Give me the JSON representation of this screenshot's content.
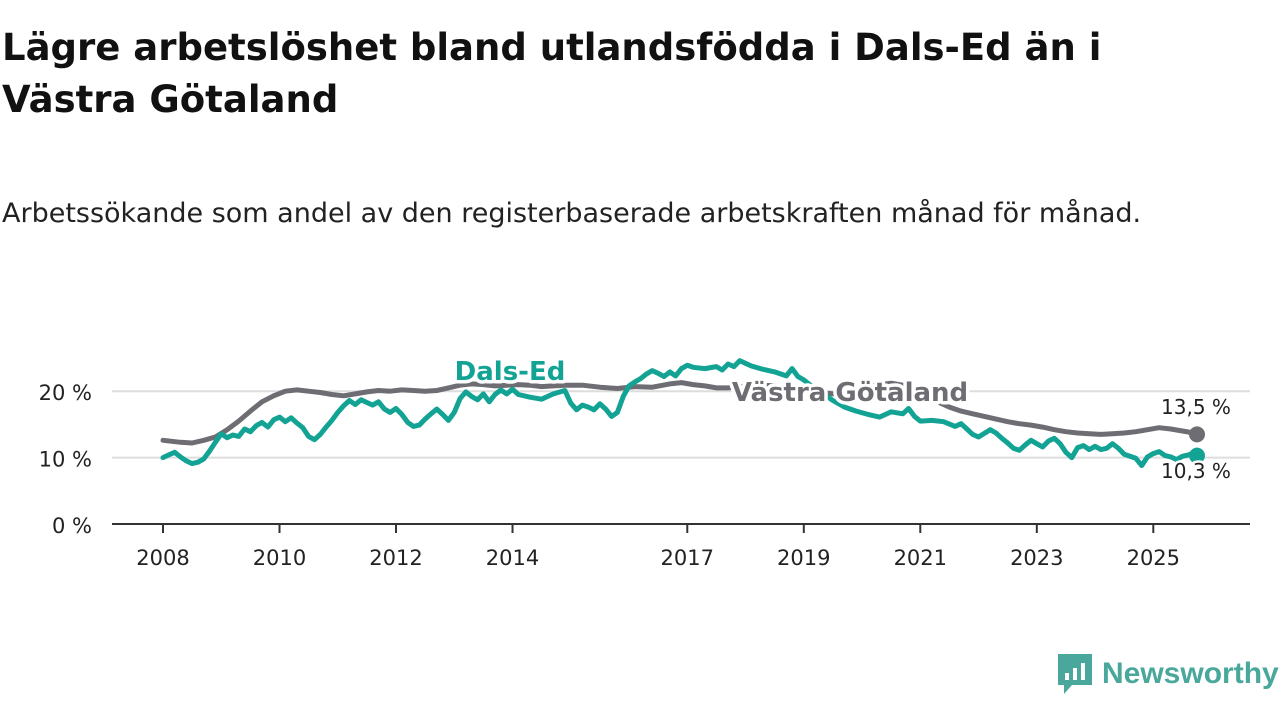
{
  "title": "Lägre arbetslöshet bland utlandsfödda i Dals-Ed än i Västra Götaland",
  "subtitle": "Arbetssökande som andel av den registerbaserade arbetskraften månad för månad.",
  "brand": {
    "name": "Newsworthy",
    "icon": "newsworthy-logo-icon"
  },
  "colors": {
    "dals_ed": "#12a394",
    "vastra_gotaland": "#6e6d73",
    "grid": "#dddddd",
    "axis": "#333333"
  },
  "chart_data": {
    "type": "line",
    "ylim": [
      0,
      25
    ],
    "xlim": [
      2007.9,
      2026.0
    ],
    "y_ticks": [
      {
        "value": 0,
        "label": "0 %"
      },
      {
        "value": 10,
        "label": "10 %"
      },
      {
        "value": 20,
        "label": "20 %"
      }
    ],
    "x_ticks": [
      {
        "value": 2008,
        "label": "2008"
      },
      {
        "value": 2010,
        "label": "2010"
      },
      {
        "value": 2012,
        "label": "2012"
      },
      {
        "value": 2014,
        "label": "2014"
      },
      {
        "value": 2017,
        "label": "2017"
      },
      {
        "value": 2019,
        "label": "2019"
      },
      {
        "value": 2021,
        "label": "2021"
      },
      {
        "value": 2023,
        "label": "2023"
      },
      {
        "value": 2025,
        "label": "2025"
      }
    ],
    "series": [
      {
        "name": "Västra Götaland",
        "label": "Västra Götaland",
        "color": "#6e6d73",
        "last_value_label": "13,5 %",
        "points": [
          [
            2008.0,
            12.6
          ],
          [
            2008.3,
            12.3
          ],
          [
            2008.5,
            12.2
          ],
          [
            2008.7,
            12.6
          ],
          [
            2008.9,
            13.1
          ],
          [
            2009.1,
            14.2
          ],
          [
            2009.3,
            15.5
          ],
          [
            2009.5,
            17.0
          ],
          [
            2009.7,
            18.4
          ],
          [
            2009.9,
            19.3
          ],
          [
            2010.1,
            20.0
          ],
          [
            2010.3,
            20.2
          ],
          [
            2010.5,
            20.0
          ],
          [
            2010.7,
            19.8
          ],
          [
            2010.9,
            19.5
          ],
          [
            2011.1,
            19.3
          ],
          [
            2011.3,
            19.6
          ],
          [
            2011.5,
            19.9
          ],
          [
            2011.7,
            20.1
          ],
          [
            2011.9,
            20.0
          ],
          [
            2012.1,
            20.2
          ],
          [
            2012.3,
            20.1
          ],
          [
            2012.5,
            20.0
          ],
          [
            2012.7,
            20.1
          ],
          [
            2012.9,
            20.5
          ],
          [
            2013.1,
            20.9
          ],
          [
            2013.3,
            21.1
          ],
          [
            2013.5,
            21.0
          ],
          [
            2013.7,
            20.8
          ],
          [
            2013.9,
            20.9
          ],
          [
            2014.1,
            21.0
          ],
          [
            2014.3,
            20.9
          ],
          [
            2014.5,
            20.7
          ],
          [
            2014.7,
            20.8
          ],
          [
            2014.9,
            20.9
          ],
          [
            2015.2,
            20.9
          ],
          [
            2015.5,
            20.6
          ],
          [
            2015.8,
            20.4
          ],
          [
            2016.1,
            20.7
          ],
          [
            2016.4,
            20.6
          ],
          [
            2016.7,
            21.1
          ],
          [
            2016.9,
            21.3
          ],
          [
            2017.1,
            21.0
          ],
          [
            2017.3,
            20.8
          ],
          [
            2017.5,
            20.5
          ],
          [
            2017.7,
            20.5
          ],
          [
            2017.9,
            20.7
          ],
          [
            2018.1,
            20.8
          ],
          [
            2018.3,
            20.9
          ],
          [
            2018.5,
            20.8
          ],
          [
            2018.7,
            20.6
          ],
          [
            2018.9,
            20.4
          ],
          [
            2019.1,
            20.2
          ],
          [
            2019.3,
            19.8
          ],
          [
            2019.5,
            19.6
          ],
          [
            2019.7,
            19.8
          ],
          [
            2019.9,
            20.3
          ],
          [
            2020.1,
            20.7
          ],
          [
            2020.3,
            21.0
          ],
          [
            2020.5,
            21.2
          ],
          [
            2020.7,
            20.9
          ],
          [
            2020.9,
            20.2
          ],
          [
            2021.1,
            19.3
          ],
          [
            2021.3,
            18.4
          ],
          [
            2021.5,
            17.6
          ],
          [
            2021.7,
            17.0
          ],
          [
            2021.9,
            16.6
          ],
          [
            2022.1,
            16.2
          ],
          [
            2022.3,
            15.8
          ],
          [
            2022.5,
            15.4
          ],
          [
            2022.7,
            15.1
          ],
          [
            2022.9,
            14.9
          ],
          [
            2023.1,
            14.6
          ],
          [
            2023.3,
            14.2
          ],
          [
            2023.5,
            13.9
          ],
          [
            2023.7,
            13.7
          ],
          [
            2023.9,
            13.6
          ],
          [
            2024.1,
            13.5
          ],
          [
            2024.3,
            13.6
          ],
          [
            2024.5,
            13.7
          ],
          [
            2024.7,
            13.9
          ],
          [
            2024.9,
            14.2
          ],
          [
            2025.1,
            14.5
          ],
          [
            2025.3,
            14.3
          ],
          [
            2025.5,
            14.0
          ],
          [
            2025.7,
            13.7
          ],
          [
            2025.75,
            13.5
          ]
        ]
      },
      {
        "name": "Dals-Ed",
        "label": "Dals-Ed",
        "color": "#12a394",
        "last_value_label": "10,3 %",
        "points": [
          [
            2008.0,
            10.0
          ],
          [
            2008.1,
            10.4
          ],
          [
            2008.2,
            10.8
          ],
          [
            2008.3,
            10.1
          ],
          [
            2008.4,
            9.5
          ],
          [
            2008.5,
            9.1
          ],
          [
            2008.6,
            9.3
          ],
          [
            2008.7,
            9.8
          ],
          [
            2008.8,
            11.0
          ],
          [
            2008.9,
            12.3
          ],
          [
            2009.0,
            13.6
          ],
          [
            2009.1,
            13.0
          ],
          [
            2009.2,
            13.4
          ],
          [
            2009.3,
            13.2
          ],
          [
            2009.4,
            14.3
          ],
          [
            2009.5,
            13.9
          ],
          [
            2009.6,
            14.8
          ],
          [
            2009.7,
            15.3
          ],
          [
            2009.8,
            14.6
          ],
          [
            2009.9,
            15.7
          ],
          [
            2010.0,
            16.1
          ],
          [
            2010.1,
            15.4
          ],
          [
            2010.2,
            16.0
          ],
          [
            2010.3,
            15.2
          ],
          [
            2010.4,
            14.5
          ],
          [
            2010.5,
            13.2
          ],
          [
            2010.6,
            12.7
          ],
          [
            2010.7,
            13.5
          ],
          [
            2010.8,
            14.6
          ],
          [
            2010.9,
            15.6
          ],
          [
            2011.0,
            16.8
          ],
          [
            2011.1,
            17.8
          ],
          [
            2011.2,
            18.6
          ],
          [
            2011.3,
            18.0
          ],
          [
            2011.4,
            18.7
          ],
          [
            2011.5,
            18.3
          ],
          [
            2011.6,
            17.9
          ],
          [
            2011.7,
            18.4
          ],
          [
            2011.8,
            17.3
          ],
          [
            2011.9,
            16.8
          ],
          [
            2012.0,
            17.4
          ],
          [
            2012.1,
            16.5
          ],
          [
            2012.2,
            15.3
          ],
          [
            2012.3,
            14.7
          ],
          [
            2012.4,
            14.9
          ],
          [
            2012.5,
            15.8
          ],
          [
            2012.6,
            16.6
          ],
          [
            2012.7,
            17.3
          ],
          [
            2012.8,
            16.5
          ],
          [
            2012.9,
            15.6
          ],
          [
            2013.0,
            16.8
          ],
          [
            2013.1,
            18.9
          ],
          [
            2013.2,
            19.9
          ],
          [
            2013.3,
            19.2
          ],
          [
            2013.4,
            18.7
          ],
          [
            2013.5,
            19.6
          ],
          [
            2013.6,
            18.4
          ],
          [
            2013.7,
            19.5
          ],
          [
            2013.8,
            20.2
          ],
          [
            2013.9,
            19.6
          ],
          [
            2014.0,
            20.3
          ],
          [
            2014.1,
            19.5
          ],
          [
            2014.3,
            19.1
          ],
          [
            2014.5,
            18.8
          ],
          [
            2014.7,
            19.6
          ],
          [
            2014.9,
            20.1
          ],
          [
            2015.0,
            18.2
          ],
          [
            2015.1,
            17.2
          ],
          [
            2015.2,
            17.9
          ],
          [
            2015.3,
            17.6
          ],
          [
            2015.4,
            17.2
          ],
          [
            2015.5,
            18.1
          ],
          [
            2015.6,
            17.3
          ],
          [
            2015.7,
            16.2
          ],
          [
            2015.8,
            16.8
          ],
          [
            2015.9,
            19.2
          ],
          [
            2016.0,
            20.8
          ],
          [
            2016.1,
            21.4
          ],
          [
            2016.2,
            21.9
          ],
          [
            2016.3,
            22.6
          ],
          [
            2016.4,
            23.1
          ],
          [
            2016.5,
            22.7
          ],
          [
            2016.6,
            22.2
          ],
          [
            2016.7,
            22.9
          ],
          [
            2016.8,
            22.3
          ],
          [
            2016.9,
            23.4
          ],
          [
            2017.0,
            23.9
          ],
          [
            2017.1,
            23.6
          ],
          [
            2017.3,
            23.4
          ],
          [
            2017.5,
            23.7
          ],
          [
            2017.6,
            23.2
          ],
          [
            2017.7,
            24.1
          ],
          [
            2017.8,
            23.7
          ],
          [
            2017.9,
            24.6
          ],
          [
            2018.0,
            24.2
          ],
          [
            2018.1,
            23.8
          ],
          [
            2018.3,
            23.3
          ],
          [
            2018.5,
            22.9
          ],
          [
            2018.7,
            22.3
          ],
          [
            2018.8,
            23.4
          ],
          [
            2018.9,
            22.2
          ],
          [
            2019.0,
            21.7
          ],
          [
            2019.1,
            21.0
          ],
          [
            2019.3,
            19.8
          ],
          [
            2019.5,
            18.6
          ],
          [
            2019.7,
            17.6
          ],
          [
            2019.9,
            17.0
          ],
          [
            2020.1,
            16.5
          ],
          [
            2020.3,
            16.1
          ],
          [
            2020.5,
            16.9
          ],
          [
            2020.7,
            16.6
          ],
          [
            2020.8,
            17.4
          ],
          [
            2020.9,
            16.2
          ],
          [
            2021.0,
            15.5
          ],
          [
            2021.2,
            15.6
          ],
          [
            2021.4,
            15.4
          ],
          [
            2021.6,
            14.7
          ],
          [
            2021.7,
            15.1
          ],
          [
            2021.8,
            14.3
          ],
          [
            2021.9,
            13.5
          ],
          [
            2022.0,
            13.1
          ],
          [
            2022.2,
            14.2
          ],
          [
            2022.3,
            13.7
          ],
          [
            2022.4,
            12.9
          ],
          [
            2022.5,
            12.2
          ],
          [
            2022.6,
            11.4
          ],
          [
            2022.7,
            11.1
          ],
          [
            2022.8,
            11.9
          ],
          [
            2022.9,
            12.6
          ],
          [
            2023.0,
            12.1
          ],
          [
            2023.1,
            11.6
          ],
          [
            2023.2,
            12.5
          ],
          [
            2023.3,
            12.9
          ],
          [
            2023.4,
            12.1
          ],
          [
            2023.5,
            10.8
          ],
          [
            2023.6,
            10.0
          ],
          [
            2023.7,
            11.5
          ],
          [
            2023.8,
            11.8
          ],
          [
            2023.9,
            11.2
          ],
          [
            2024.0,
            11.7
          ],
          [
            2024.1,
            11.2
          ],
          [
            2024.2,
            11.4
          ],
          [
            2024.3,
            12.1
          ],
          [
            2024.4,
            11.4
          ],
          [
            2024.5,
            10.5
          ],
          [
            2024.6,
            10.2
          ],
          [
            2024.7,
            9.9
          ],
          [
            2024.8,
            8.8
          ],
          [
            2024.9,
            10.1
          ],
          [
            2025.0,
            10.6
          ],
          [
            2025.1,
            10.9
          ],
          [
            2025.2,
            10.3
          ],
          [
            2025.3,
            10.1
          ],
          [
            2025.4,
            9.7
          ],
          [
            2025.5,
            10.2
          ],
          [
            2025.6,
            10.4
          ],
          [
            2025.7,
            10.7
          ],
          [
            2025.75,
            10.3
          ]
        ]
      }
    ]
  }
}
